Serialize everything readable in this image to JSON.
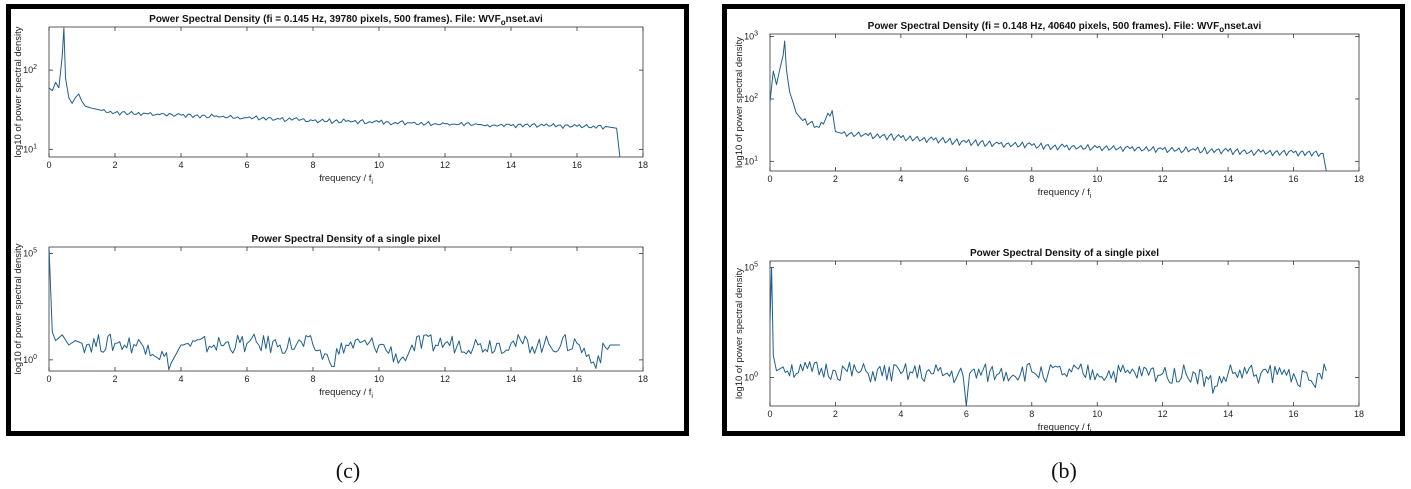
{
  "figures": [
    {
      "id": "c",
      "caption": "(c)",
      "plots": [
        {
          "title": "Power Spectral Density (fi = 0.145 Hz, 39780 pixels, 500 frames).  File: WVF",
          "title_sub": "o",
          "title_tail": "nset.avi",
          "ylabel": "log10 of power spectral density",
          "xlabel": "frequency / f",
          "xlabel_sub": "i",
          "yticks": [
            {
              "v": 10,
              "base": "10",
              "exp": "1"
            },
            {
              "v": 100,
              "base": "10",
              "exp": "2"
            }
          ]
        },
        {
          "title": "Power Spectral Density of a single pixel",
          "ylabel": "log10 of power spectral density",
          "xlabel": "frequency / f",
          "xlabel_sub": "i",
          "yticks": [
            {
              "v": 1,
              "base": "10",
              "exp": "0"
            },
            {
              "v": 100000,
              "base": "10",
              "exp": "5"
            }
          ]
        }
      ],
      "xticks": [
        "0",
        "2",
        "4",
        "6",
        "8",
        "10",
        "12",
        "14",
        "16",
        "18"
      ]
    },
    {
      "id": "b",
      "caption": "(b)",
      "plots": [
        {
          "title": "Power Spectral Density (fi = 0.148 Hz, 40640 pixels, 500 frames).  File: WVF",
          "title_sub": "o",
          "title_tail": "nset.avi",
          "ylabel": "log10 of power spectral density",
          "xlabel": "frequency / f",
          "xlabel_sub": "i",
          "yticks": [
            {
              "v": 10,
              "base": "10",
              "exp": "1"
            },
            {
              "v": 100,
              "base": "10",
              "exp": "2"
            },
            {
              "v": 1000,
              "base": "10",
              "exp": "3"
            }
          ]
        },
        {
          "title": "Power Spectral Density of a single pixel",
          "ylabel": "log10 of power spectral density",
          "xlabel": "frequency / f",
          "xlabel_sub": "i",
          "yticks": [
            {
              "v": 1,
              "base": "10",
              "exp": "0"
            },
            {
              "v": 100000,
              "base": "10",
              "exp": "5"
            }
          ]
        }
      ],
      "xticks": [
        "0",
        "2",
        "4",
        "6",
        "8",
        "10",
        "12",
        "14",
        "16",
        "18"
      ]
    }
  ],
  "chart_data": [
    {
      "type": "line",
      "panel": "c",
      "position": "top",
      "title": "Power Spectral Density (fi = 0.145 Hz, 39780 pixels, 500 frames).  File: WVFonset.avi",
      "xlabel": "frequency / fi",
      "ylabel": "log10 of power spectral density",
      "xlim": [
        0,
        18
      ],
      "ylim": [
        8,
        350
      ],
      "yscale": "log",
      "grid": false,
      "x": [
        0,
        0.1,
        0.2,
        0.3,
        0.4,
        0.45,
        0.5,
        0.6,
        0.7,
        0.8,
        0.9,
        1.0,
        1.1,
        1.3,
        1.6,
        2,
        3,
        4,
        5,
        6,
        7,
        8,
        9,
        10,
        11,
        12,
        13,
        14,
        15,
        16,
        17,
        17.2,
        17.3
      ],
      "y": [
        60,
        55,
        70,
        60,
        150,
        340,
        80,
        45,
        38,
        45,
        50,
        40,
        35,
        33,
        31,
        29,
        28,
        27,
        26,
        25,
        24,
        23,
        22.5,
        22,
        21.5,
        21,
        20.5,
        20,
        19.8,
        19.5,
        19,
        18.5,
        8
      ]
    },
    {
      "type": "line",
      "panel": "c",
      "position": "bottom",
      "title": "Power Spectral Density of a single pixel",
      "xlabel": "frequency / fi",
      "ylabel": "log10 of power spectral density",
      "xlim": [
        0,
        18
      ],
      "ylim": [
        0.3,
        200000
      ],
      "yscale": "log",
      "grid": false,
      "x": [
        0,
        0.1,
        0.2,
        0.4,
        0.6,
        0.8,
        1,
        2,
        3,
        3.7,
        4,
        5,
        6,
        7,
        8,
        8.5,
        9,
        10,
        10.8,
        11,
        12,
        13,
        14,
        15,
        16,
        16.5,
        17,
        17.3
      ],
      "y": [
        200000,
        20,
        8,
        15,
        5,
        8,
        6,
        6,
        5,
        0.7,
        5,
        5,
        6,
        5,
        5,
        0.8,
        5,
        5,
        0.9,
        5,
        6,
        5,
        6,
        5,
        6,
        0.8,
        5,
        5
      ]
    },
    {
      "type": "line",
      "panel": "b",
      "position": "top",
      "title": "Power Spectral Density (fi = 0.148 Hz, 40640 pixels, 500 frames).  File: WVFonset.avi",
      "xlabel": "frequency / fi",
      "ylabel": "log10 of power spectral density",
      "xlim": [
        0,
        18
      ],
      "ylim": [
        7,
        1100
      ],
      "yscale": "log",
      "grid": false,
      "x": [
        0,
        0.1,
        0.2,
        0.3,
        0.4,
        0.45,
        0.5,
        0.6,
        0.7,
        0.8,
        1.0,
        1.5,
        1.9,
        2.0,
        2.2,
        3,
        4,
        5,
        6,
        7,
        8,
        9,
        10,
        11,
        12,
        13,
        14,
        15,
        16,
        16.9,
        17.0
      ],
      "y": [
        90,
        280,
        170,
        300,
        500,
        850,
        300,
        130,
        90,
        60,
        45,
        35,
        65,
        30,
        28,
        26,
        24,
        22,
        20,
        19,
        18,
        17,
        16.5,
        16,
        15.5,
        15,
        14.5,
        14,
        13.8,
        13.5,
        7
      ]
    },
    {
      "type": "line",
      "panel": "b",
      "position": "bottom",
      "title": "Power Spectral Density of a single pixel",
      "xlabel": "frequency / fi",
      "ylabel": "log10 of power spectral density",
      "xlim": [
        0,
        18
      ],
      "ylim": [
        0.05,
        200000
      ],
      "yscale": "log",
      "grid": false,
      "x": [
        0,
        0.05,
        0.1,
        0.2,
        0.4,
        1,
        2,
        3,
        4,
        5,
        5.9,
        6.0,
        6.1,
        7,
        8,
        9,
        10,
        11,
        12,
        13,
        13.6,
        14,
        15,
        16,
        16.6,
        17
      ],
      "y": [
        300,
        100000,
        10,
        2,
        3,
        2,
        2,
        1.5,
        1.5,
        1.5,
        1.2,
        0.05,
        1.5,
        1.5,
        1.8,
        1.5,
        1.5,
        1.5,
        1.5,
        1.5,
        0.4,
        1.5,
        1.5,
        1.5,
        0.5,
        2
      ]
    }
  ]
}
